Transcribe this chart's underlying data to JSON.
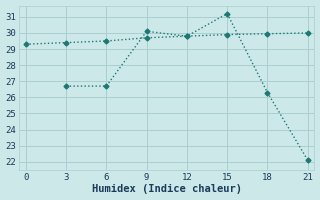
{
  "line1_x": [
    0,
    3,
    6,
    9,
    12,
    15,
    18,
    21
  ],
  "line1_y": [
    29.3,
    29.4,
    29.5,
    29.7,
    29.8,
    29.9,
    29.95,
    30.0
  ],
  "line2_x": [
    3,
    6,
    9,
    12,
    15,
    18,
    21
  ],
  "line2_y": [
    26.7,
    26.7,
    30.1,
    29.8,
    31.2,
    26.3,
    22.1
  ],
  "line_color": "#1d7874",
  "bg_color": "#cce8e8",
  "grid_color": "#aacfcf",
  "xlabel": "Humidex (Indice chaleur)",
  "xlim": [
    -0.5,
    21.5
  ],
  "ylim": [
    21.5,
    31.7
  ],
  "xticks": [
    0,
    3,
    6,
    9,
    12,
    15,
    18,
    21
  ],
  "yticks": [
    22,
    23,
    24,
    25,
    26,
    27,
    28,
    29,
    30,
    31
  ],
  "marker": "D",
  "markersize": 2.5,
  "linewidth": 1.0,
  "font_color": "#1a3a5a",
  "tick_fontsize": 6.5,
  "xlabel_fontsize": 7.5,
  "linestyle": "dotted"
}
